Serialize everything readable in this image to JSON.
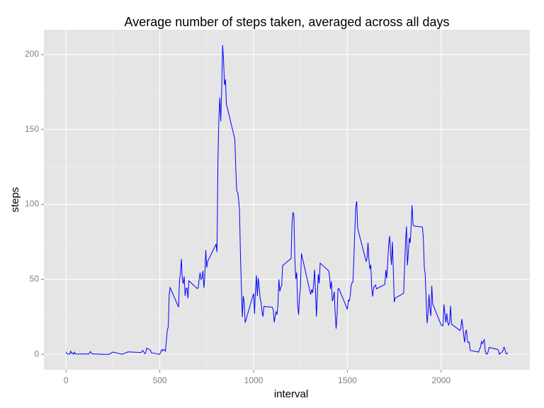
{
  "chart_data": {
    "type": "line",
    "title": "Average number of steps taken, averaged across all days",
    "xlabel": "interval",
    "ylabel": "steps",
    "xlim": [
      -117.75,
      2472.75
    ],
    "ylim": [
      -10.3,
      216.5
    ],
    "xticks": [
      0,
      500,
      1000,
      1500,
      2000
    ],
    "yticks": [
      0,
      50,
      100,
      150,
      200
    ],
    "xminor": [
      250,
      750,
      1250,
      1750,
      2250
    ],
    "yminor": [
      25,
      75,
      125,
      175
    ],
    "grid": true,
    "panel_color": "#e5e5e5",
    "x": [
      0,
      5,
      10,
      15,
      20,
      25,
      30,
      35,
      40,
      45,
      50,
      55,
      100,
      110,
      120,
      130,
      140,
      150,
      200,
      230,
      250,
      300,
      330,
      400,
      410,
      420,
      425,
      430,
      440,
      450,
      455,
      500,
      505,
      510,
      515,
      520,
      525,
      530,
      540,
      545,
      550,
      555,
      600,
      605,
      610,
      615,
      620,
      625,
      630,
      635,
      640,
      645,
      650,
      655,
      700,
      705,
      710,
      715,
      720,
      725,
      730,
      735,
      740,
      745,
      750,
      755,
      800,
      805,
      810,
      815,
      820,
      825,
      830,
      835,
      840,
      845,
      850,
      855,
      900,
      905,
      910,
      915,
      920,
      925,
      930,
      935,
      940,
      945,
      950,
      955,
      1000,
      1005,
      1010,
      1015,
      1020,
      1025,
      1030,
      1035,
      1040,
      1045,
      1050,
      1055,
      1100,
      1105,
      1110,
      1115,
      1120,
      1125,
      1130,
      1135,
      1140,
      1145,
      1150,
      1155,
      1200,
      1205,
      1210,
      1215,
      1220,
      1225,
      1230,
      1235,
      1240,
      1245,
      1250,
      1255,
      1300,
      1305,
      1310,
      1315,
      1320,
      1325,
      1330,
      1335,
      1340,
      1345,
      1350,
      1355,
      1400,
      1405,
      1410,
      1415,
      1420,
      1425,
      1430,
      1435,
      1440,
      1445,
      1450,
      1455,
      1500,
      1505,
      1510,
      1515,
      1520,
      1525,
      1530,
      1535,
      1540,
      1545,
      1550,
      1555,
      1600,
      1605,
      1610,
      1615,
      1620,
      1625,
      1630,
      1635,
      1640,
      1645,
      1650,
      1655,
      1700,
      1705,
      1710,
      1715,
      1720,
      1725,
      1730,
      1735,
      1740,
      1745,
      1750,
      1755,
      1800,
      1805,
      1810,
      1815,
      1820,
      1825,
      1830,
      1835,
      1840,
      1845,
      1850,
      1855,
      1900,
      1905,
      1910,
      1915,
      1920,
      1925,
      1930,
      1935,
      1940,
      1945,
      1950,
      1955,
      2000,
      2005,
      2010,
      2015,
      2020,
      2025,
      2030,
      2035,
      2040,
      2045,
      2050,
      2055,
      2100,
      2105,
      2110,
      2115,
      2120,
      2125,
      2130,
      2135,
      2140,
      2145,
      2150,
      2155,
      2200,
      2205,
      2210,
      2215,
      2220,
      2225,
      2230,
      2235,
      2240,
      2245,
      2250,
      2255,
      2300,
      2305,
      2310,
      2315,
      2320,
      2325,
      2330,
      2335,
      2340,
      2345,
      2350,
      2355
    ],
    "series": [
      {
        "color": "#0000ff",
        "values": [
          1.7,
          0.3,
          0.1,
          0.2,
          0.1,
          2.1,
          0.5,
          0.9,
          0,
          1.5,
          0.3,
          0.1,
          0.3,
          0.2,
          0,
          1.8,
          0.2,
          0.3,
          0,
          0,
          1.5,
          0,
          1.6,
          1.2,
          2.6,
          0.3,
          1,
          4.1,
          3.5,
          2.7,
          1,
          0,
          1.6,
          3,
          2.2,
          3.3,
          3,
          2.1,
          16,
          18.3,
          39.5,
          44.5,
          31.5,
          49.3,
          53.8,
          63.5,
          50,
          47,
          52,
          39,
          44,
          44.2,
          37.4,
          49,
          43.8,
          44.4,
          50.5,
          54.5,
          49.9,
          51,
          55.7,
          44.3,
          52.3,
          69.5,
          57.8,
          62,
          73.4,
          68.2,
          129.4,
          157.5,
          171.2,
          155.4,
          177.3,
          206.2,
          195.9,
          179.6,
          183.4,
          167,
          143.5,
          124,
          109.1,
          108.1,
          103.7,
          95.97,
          66.2,
          45.2,
          24.8,
          38.8,
          34.98,
          21.06,
          40.6,
          26.98,
          42.4,
          52.7,
          38.9,
          50.8,
          44.3,
          37.4,
          34.7,
          28.3,
          25.1,
          31.9,
          31.4,
          29.7,
          21.3,
          25.5,
          28.4,
          26.5,
          33.4,
          49.98,
          42,
          44.6,
          46,
          59.2,
          63.9,
          87.7,
          94.8,
          92.8,
          63.4,
          50.2,
          54.5,
          32.4,
          26.5,
          37.7,
          45.1,
          67.3,
          42.3,
          39.9,
          43.3,
          40.98,
          46.2,
          56.4,
          42.8,
          25.1,
          39.97,
          53.5,
          47.3,
          60.8,
          55.75,
          51.96,
          43.6,
          48.7,
          35.5,
          37.5,
          41.8,
          27.5,
          17.1,
          26.1,
          43.6,
          43.8,
          30,
          36.1,
          35.5,
          38.8,
          45.96,
          47.75,
          48.1,
          65.3,
          82.9,
          98.7,
          102.1,
          83.96,
          62.1,
          64.1,
          74.5,
          63.2,
          56.9,
          59.8,
          43.9,
          38.6,
          44.7,
          45.5,
          46.2,
          43.7,
          46.6,
          56.3,
          50.7,
          61.2,
          72.7,
          78.9,
          68.9,
          59.7,
          75.1,
          56.5,
          34.8,
          37.5,
          40.7,
          58,
          74.7,
          85.3,
          59.3,
          67.8,
          77.7,
          74.2,
          85.3,
          99.5,
          86.6,
          85.6,
          84.9,
          77.8,
          58,
          53.4,
          36.3,
          20.7,
          27.4,
          40,
          30.2,
          25.5,
          45.7,
          33.5,
          19.6,
          19,
          19.3,
          33.3,
          26.8,
          21.2,
          27.3,
          21.3,
          19.5,
          21.3,
          32.3,
          20.2,
          15.9,
          17.2,
          23.5,
          19.2,
          12.5,
          8,
          14.7,
          16.3,
          8.7,
          7.8,
          8.1,
          2.6,
          1.5,
          3.7,
          4.8,
          8.5,
          7.1,
          8.7,
          9.8,
          2.2,
          0.3,
          0.1,
          1.6,
          4.6,
          3.3,
          2.8,
          0,
          0.8,
          1,
          1.6,
          2.6,
          4.7,
          3.3,
          0.6,
          0.2,
          1.1
        ]
      }
    ]
  }
}
